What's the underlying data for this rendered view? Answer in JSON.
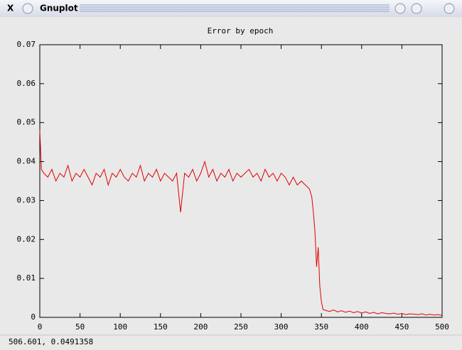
{
  "window_title": "Gnuplot",
  "status": "506.601,  0.0491358",
  "chart_data": {
    "type": "line",
    "title": "Error by epoch",
    "x": [
      0,
      2,
      5,
      10,
      15,
      20,
      25,
      30,
      35,
      40,
      45,
      50,
      55,
      60,
      65,
      70,
      75,
      80,
      85,
      90,
      95,
      100,
      105,
      110,
      115,
      120,
      125,
      130,
      135,
      140,
      145,
      150,
      155,
      160,
      165,
      170,
      175,
      180,
      185,
      190,
      195,
      200,
      205,
      210,
      215,
      220,
      225,
      230,
      235,
      240,
      245,
      250,
      255,
      260,
      265,
      270,
      275,
      280,
      285,
      290,
      295,
      300,
      305,
      310,
      315,
      320,
      325,
      330,
      335,
      338,
      340,
      342,
      344,
      346,
      348,
      350,
      352,
      355,
      360,
      365,
      370,
      375,
      380,
      385,
      390,
      395,
      400,
      405,
      410,
      415,
      420,
      425,
      430,
      435,
      440,
      445,
      450,
      455,
      460,
      465,
      470,
      475,
      480,
      485,
      490,
      495,
      500
    ],
    "series": [
      {
        "name": "error",
        "color": "#e00000",
        "values": [
          0.048,
          0.038,
          0.037,
          0.036,
          0.038,
          0.035,
          0.037,
          0.036,
          0.039,
          0.035,
          0.037,
          0.036,
          0.038,
          0.036,
          0.034,
          0.037,
          0.036,
          0.038,
          0.034,
          0.037,
          0.036,
          0.038,
          0.036,
          0.035,
          0.037,
          0.036,
          0.039,
          0.035,
          0.037,
          0.036,
          0.038,
          0.035,
          0.037,
          0.036,
          0.035,
          0.037,
          0.027,
          0.037,
          0.036,
          0.038,
          0.035,
          0.037,
          0.04,
          0.036,
          0.038,
          0.035,
          0.037,
          0.036,
          0.038,
          0.035,
          0.037,
          0.036,
          0.037,
          0.038,
          0.036,
          0.037,
          0.035,
          0.038,
          0.036,
          0.037,
          0.035,
          0.037,
          0.036,
          0.034,
          0.036,
          0.034,
          0.035,
          0.034,
          0.033,
          0.031,
          0.027,
          0.022,
          0.013,
          0.018,
          0.008,
          0.004,
          0.002,
          0.0018,
          0.0015,
          0.0019,
          0.0014,
          0.0017,
          0.0013,
          0.0016,
          0.0012,
          0.0015,
          0.0011,
          0.0014,
          0.001,
          0.0013,
          0.0009,
          0.0012,
          0.001,
          0.0009,
          0.0011,
          0.0008,
          0.001,
          0.0007,
          0.0009,
          0.0008,
          0.0007,
          0.0009,
          0.0006,
          0.0008,
          0.0006,
          0.0007,
          0.0005
        ]
      }
    ],
    "xlim": [
      0,
      500
    ],
    "xticks": [
      0,
      50,
      100,
      150,
      200,
      250,
      300,
      350,
      400,
      450,
      500
    ],
    "ylim": [
      0,
      0.07
    ],
    "yticks": [
      {
        "value": 0,
        "label": "0"
      },
      {
        "value": 0.01,
        "label": "0.01"
      },
      {
        "value": 0.02,
        "label": "0.02"
      },
      {
        "value": 0.03,
        "label": "0.03"
      },
      {
        "value": 0.04,
        "label": "0.04"
      },
      {
        "value": 0.05,
        "label": "0.05"
      },
      {
        "value": 0.06,
        "label": "0.06"
      },
      {
        "value": 0.07,
        "label": "0.07"
      }
    ]
  }
}
